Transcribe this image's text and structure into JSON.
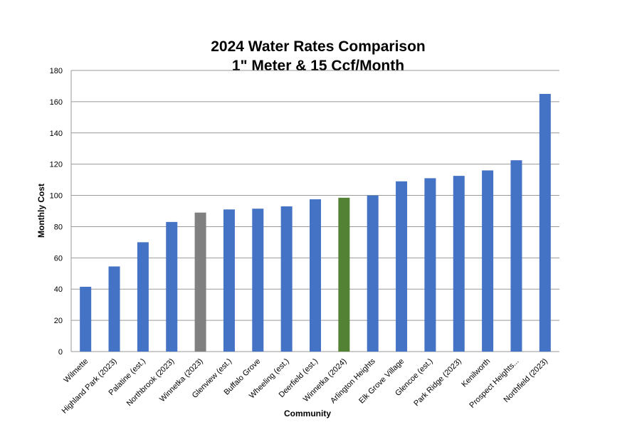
{
  "chart_data": {
    "type": "bar",
    "title": "2024 Water Rates Comparison",
    "subtitle": "1\" Meter & 15 Ccf/Month",
    "xlabel": "Community",
    "ylabel": "Monthly Cost",
    "ylim": [
      0,
      180
    ],
    "yticks": [
      0,
      20,
      40,
      60,
      80,
      100,
      120,
      140,
      160,
      180
    ],
    "grid": true,
    "legend": "none",
    "categories": [
      "Wilmette",
      "Highland Park (2023)",
      "Palatine (est.)",
      "Northbrook (2023)",
      "Winnetka (2023)",
      "Glenview (est.)",
      "Buffalo Grove",
      "Wheeling (est.)",
      "Deerfield (est.)",
      "Winnetka (2024)",
      "Arlington Heights",
      "Elk Grove Village",
      "Glencoe (est.)",
      "Park Ridge (2023)",
      "Kenilworth",
      "Prospect Heights...",
      "Northfield (2023)"
    ],
    "values": [
      41.5,
      54.5,
      70,
      83,
      89,
      91,
      91.5,
      93,
      97.5,
      98.5,
      100,
      109,
      111,
      112.5,
      116,
      122.5,
      165
    ],
    "colors": [
      "#4472c4",
      "#4472c4",
      "#4472c4",
      "#4472c4",
      "#808080",
      "#4472c4",
      "#4472c4",
      "#4472c4",
      "#4472c4",
      "#548235",
      "#4472c4",
      "#4472c4",
      "#4472c4",
      "#4472c4",
      "#4472c4",
      "#4472c4",
      "#4472c4"
    ]
  }
}
